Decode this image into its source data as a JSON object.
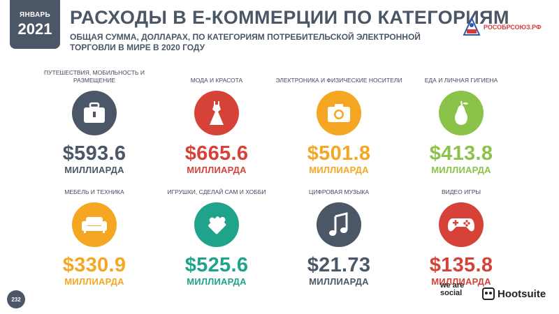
{
  "badge": {
    "month": "ЯНВАРЬ",
    "year": "2021"
  },
  "title": "РАСХОДЫ В Е-КОММЕРЦИИ ПО КАТЕГОРИЯМ",
  "subtitle": "ОБЩАЯ СУММА, ДОЛЛАРАХ, ПО КАТЕГОРИЯМ ПОТРЕБИТЕЛЬСКОЙ ЭЛЕКТРОННОЙ ТОРГОВЛИ В МИРЕ В 2020 ГОДУ",
  "brand": "РОСОБРСОЮЗ.РФ",
  "unit": "МИЛЛИАРДА",
  "categories": [
    {
      "label": "ПУТЕШЕСТВИЯ, МОБИЛЬНОСТЬ И РАЗМЕЩЕНИЕ",
      "value": "$593.6",
      "color": "#4b5666",
      "icon": "suitcase-icon"
    },
    {
      "label": "МОДА И КРАСОТА",
      "value": "$665.6",
      "color": "#d64237",
      "icon": "dress-icon"
    },
    {
      "label": "ЭЛЕКТРОНИКА И ФИЗИЧЕСКИЕ НОСИТЕЛИ",
      "value": "$501.8",
      "color": "#f5a623",
      "icon": "camera-icon"
    },
    {
      "label": "ЕДА И ЛИЧНАЯ ГИГИЕНА",
      "value": "$413.8",
      "color": "#8bc34a",
      "icon": "pear-icon"
    },
    {
      "label": "МЕБЕЛЬ И ТЕХНИКА",
      "value": "$330.9",
      "color": "#f5a623",
      "icon": "sofa-icon"
    },
    {
      "label": "ИГРУШКИ, СДЕЛАЙ САМ И ХОББИ",
      "value": "$525.6",
      "color": "#1fa38a",
      "icon": "puzzle-icon"
    },
    {
      "label": "ЦИФРОВАЯ МУЗЫКА",
      "value": "$21.73",
      "color": "#4b5666",
      "icon": "music-note-icon"
    },
    {
      "label": "ВИДЕО ИГРЫ",
      "value": "$135.8",
      "color": "#d64237",
      "icon": "gamepad-icon"
    }
  ],
  "footer": {
    "page": "232",
    "partner_1": "we are social",
    "partner_2": "Hootsuite"
  }
}
